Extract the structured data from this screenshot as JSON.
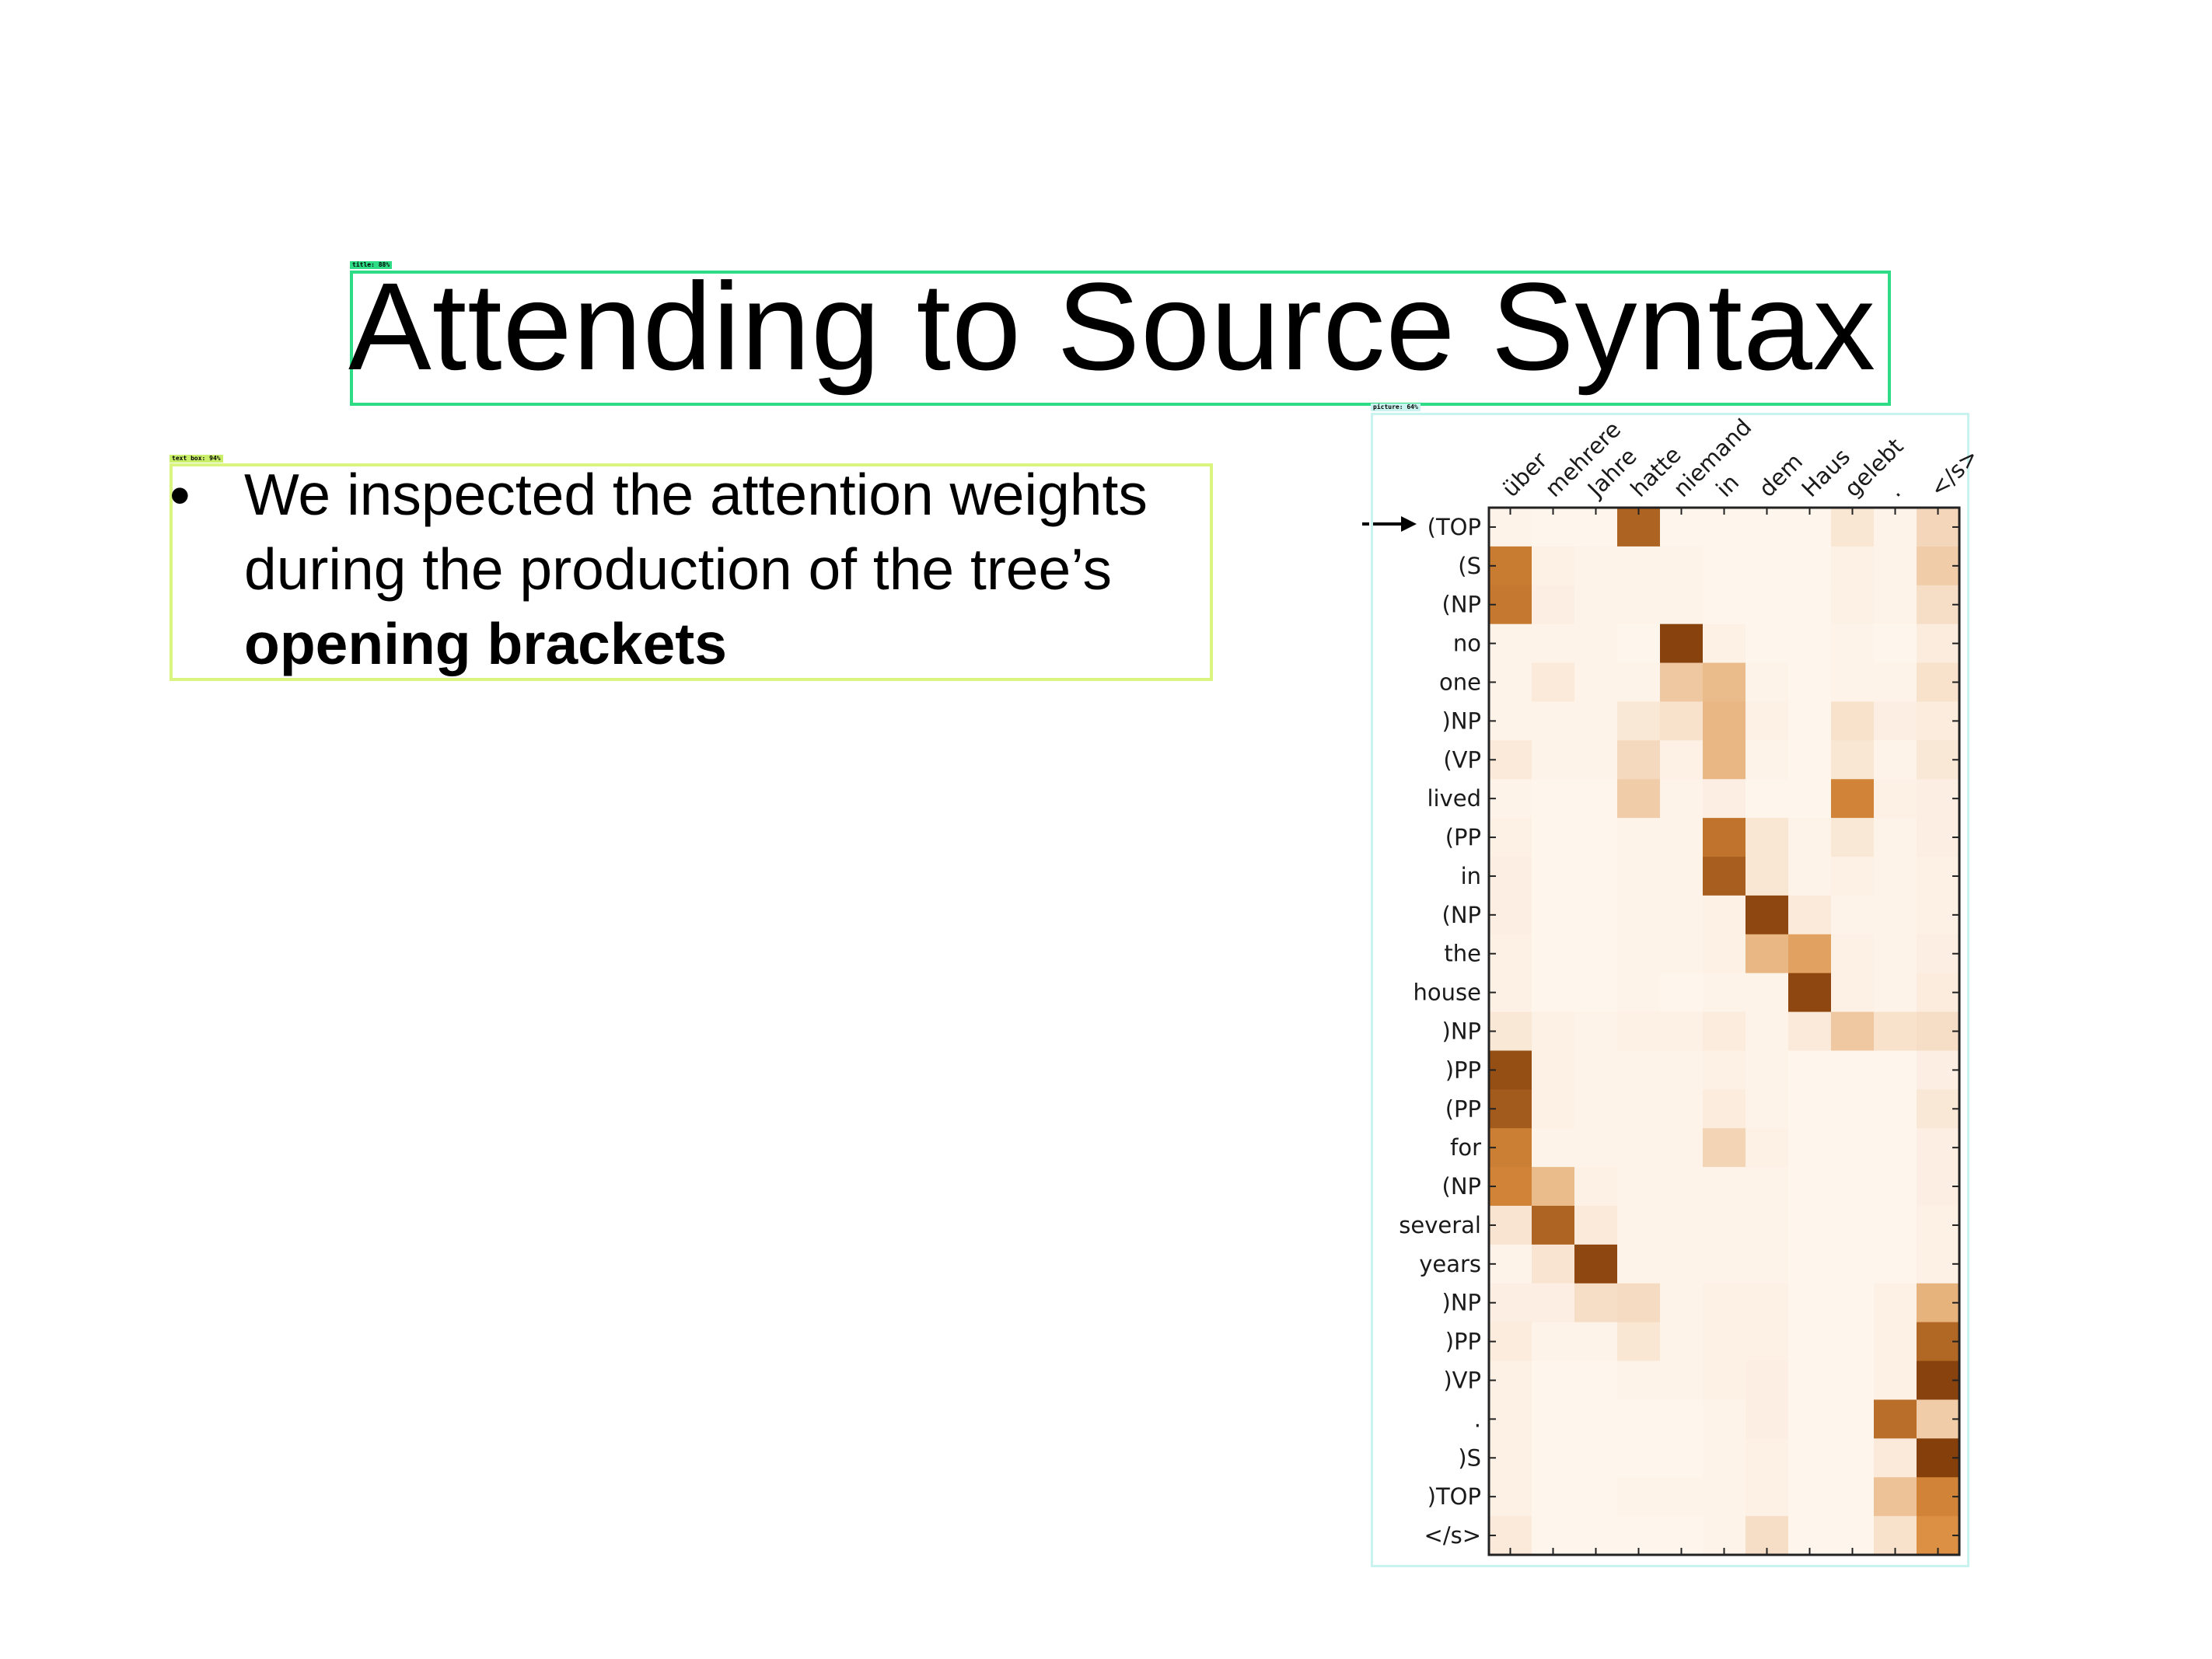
{
  "slide": {
    "title": "Attending to Source Syntax",
    "bullet": {
      "line1": "We inspected the attention weights",
      "line2": "during the production of the tree’s",
      "line3_bold": "opening brackets"
    }
  },
  "detections": {
    "title_tag": "title: 88%",
    "text_tag": "text box: 94%",
    "picture_tag": "picture: 64%"
  },
  "colors": {
    "title_box": "#2fdc86",
    "text_box": "#d9f57f",
    "picture_box": "#c9f3ef",
    "heatmap_low": "#fff7f0",
    "heatmap_high": "#7f3a08"
  },
  "chart_data": {
    "type": "heatmap",
    "x_labels": [
      "über",
      "mehrere",
      "Jahre",
      "hatte",
      "niemand",
      "in",
      "dem",
      "Haus",
      "gelebt",
      ".",
      "</s>"
    ],
    "y_labels": [
      "(TOP",
      "(S",
      "(NP",
      "no",
      "one",
      ")NP",
      "(VP",
      "lived",
      "(PP",
      "in",
      "(NP",
      "the",
      "house",
      ")NP",
      ")PP",
      "(PP",
      "for",
      "(NP",
      "several",
      "years",
      ")NP",
      ")PP",
      ")VP",
      ".",
      ")S",
      ")TOP",
      "</s>"
    ],
    "highlighted_row": "(TOP",
    "values": [
      [
        0.02,
        0.01,
        0.01,
        0.75,
        0.01,
        0.01,
        0.01,
        0.01,
        0.08,
        0.02,
        0.15
      ],
      [
        0.6,
        0.03,
        0.02,
        0.02,
        0.02,
        0.01,
        0.01,
        0.01,
        0.03,
        0.02,
        0.2
      ],
      [
        0.62,
        0.04,
        0.02,
        0.02,
        0.02,
        0.01,
        0.01,
        0.01,
        0.03,
        0.02,
        0.12
      ],
      [
        0.02,
        0.02,
        0.02,
        0.01,
        0.95,
        0.03,
        0.01,
        0.01,
        0.02,
        0.01,
        0.05
      ],
      [
        0.02,
        0.06,
        0.02,
        0.02,
        0.22,
        0.28,
        0.02,
        0.01,
        0.02,
        0.02,
        0.1
      ],
      [
        0.02,
        0.02,
        0.02,
        0.07,
        0.1,
        0.3,
        0.03,
        0.01,
        0.1,
        0.04,
        0.05
      ],
      [
        0.06,
        0.02,
        0.02,
        0.14,
        0.03,
        0.3,
        0.02,
        0.01,
        0.08,
        0.02,
        0.07
      ],
      [
        0.02,
        0.01,
        0.01,
        0.2,
        0.02,
        0.04,
        0.01,
        0.01,
        0.55,
        0.03,
        0.04
      ],
      [
        0.03,
        0.01,
        0.01,
        0.02,
        0.02,
        0.65,
        0.08,
        0.02,
        0.07,
        0.02,
        0.04
      ],
      [
        0.04,
        0.01,
        0.01,
        0.02,
        0.02,
        0.78,
        0.08,
        0.02,
        0.03,
        0.02,
        0.03
      ],
      [
        0.04,
        0.01,
        0.01,
        0.02,
        0.02,
        0.03,
        0.92,
        0.06,
        0.02,
        0.02,
        0.03
      ],
      [
        0.03,
        0.01,
        0.01,
        0.02,
        0.02,
        0.03,
        0.3,
        0.4,
        0.03,
        0.02,
        0.04
      ],
      [
        0.03,
        0.01,
        0.01,
        0.02,
        0.01,
        0.02,
        0.02,
        0.92,
        0.03,
        0.02,
        0.05
      ],
      [
        0.07,
        0.03,
        0.02,
        0.03,
        0.03,
        0.05,
        0.02,
        0.06,
        0.22,
        0.1,
        0.12
      ],
      [
        0.88,
        0.03,
        0.02,
        0.02,
        0.02,
        0.03,
        0.02,
        0.01,
        0.01,
        0.01,
        0.04
      ],
      [
        0.8,
        0.03,
        0.02,
        0.02,
        0.02,
        0.05,
        0.02,
        0.01,
        0.01,
        0.01,
        0.07
      ],
      [
        0.58,
        0.02,
        0.02,
        0.02,
        0.02,
        0.16,
        0.03,
        0.01,
        0.01,
        0.01,
        0.04
      ],
      [
        0.55,
        0.28,
        0.03,
        0.02,
        0.02,
        0.02,
        0.02,
        0.01,
        0.01,
        0.01,
        0.04
      ],
      [
        0.09,
        0.74,
        0.06,
        0.02,
        0.02,
        0.02,
        0.02,
        0.01,
        0.01,
        0.01,
        0.03
      ],
      [
        0.02,
        0.09,
        0.92,
        0.02,
        0.02,
        0.02,
        0.02,
        0.01,
        0.01,
        0.01,
        0.03
      ],
      [
        0.04,
        0.04,
        0.12,
        0.13,
        0.02,
        0.03,
        0.03,
        0.01,
        0.01,
        0.03,
        0.32
      ],
      [
        0.05,
        0.02,
        0.02,
        0.08,
        0.02,
        0.03,
        0.03,
        0.01,
        0.01,
        0.03,
        0.72
      ],
      [
        0.03,
        0.01,
        0.01,
        0.02,
        0.02,
        0.03,
        0.04,
        0.01,
        0.01,
        0.03,
        0.95
      ],
      [
        0.03,
        0.01,
        0.01,
        0.01,
        0.01,
        0.02,
        0.04,
        0.01,
        0.01,
        0.68,
        0.2
      ],
      [
        0.03,
        0.01,
        0.01,
        0.01,
        0.01,
        0.02,
        0.03,
        0.01,
        0.01,
        0.06,
        0.97
      ],
      [
        0.03,
        0.01,
        0.01,
        0.02,
        0.02,
        0.02,
        0.03,
        0.01,
        0.01,
        0.25,
        0.55
      ],
      [
        0.06,
        0.01,
        0.01,
        0.01,
        0.01,
        0.02,
        0.12,
        0.01,
        0.01,
        0.1,
        0.48
      ]
    ],
    "grid": false
  }
}
